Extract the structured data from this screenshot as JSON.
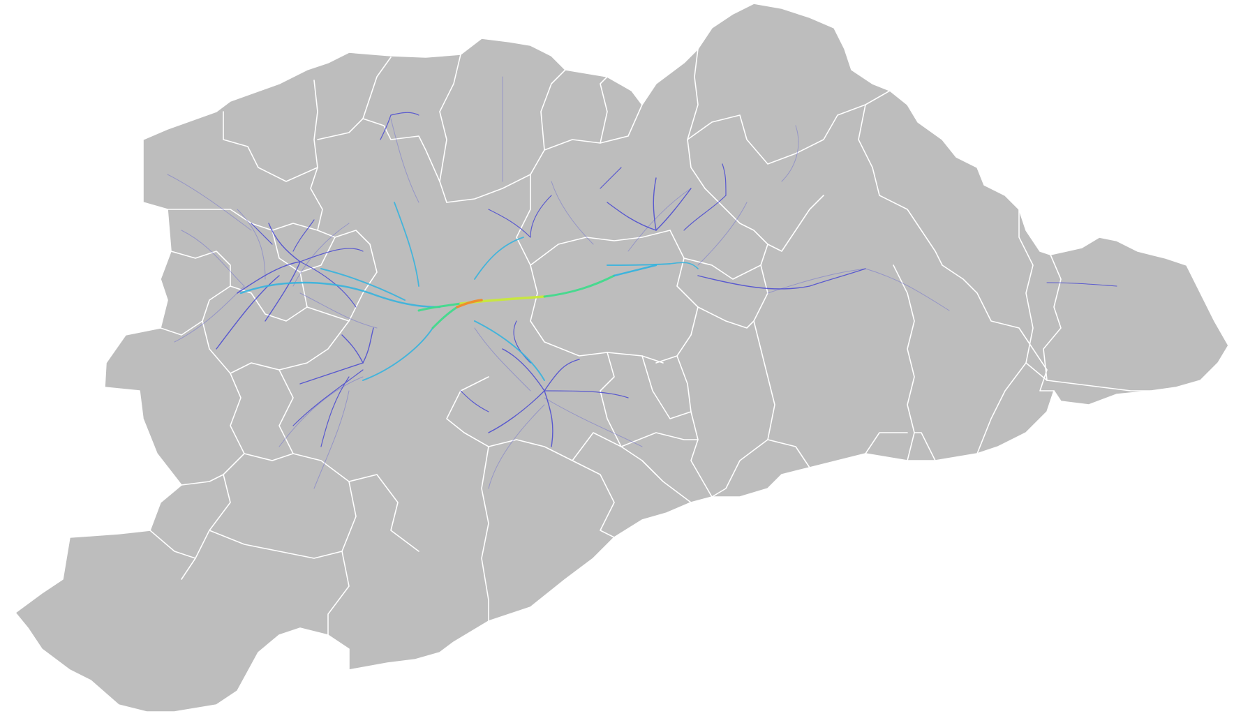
{
  "map": {
    "base_fill": "#bdbdbd",
    "border_color": "#ffffff",
    "flow_colors": {
      "low": "#3a3ad8",
      "mid_low": "#2fb3e0",
      "mid": "#3bdc8a",
      "high": "#c8e83a",
      "peak": "#f08a2a"
    }
  }
}
